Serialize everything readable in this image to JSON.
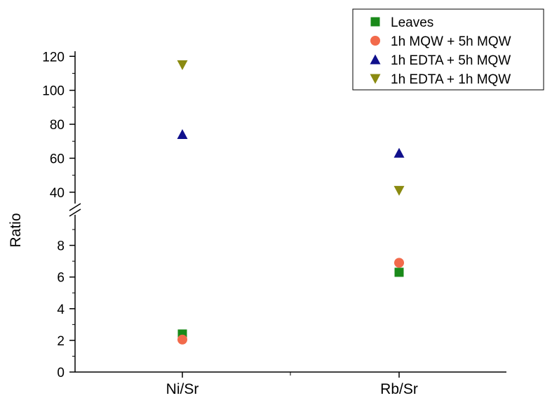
{
  "chart_data": {
    "type": "scatter",
    "ylabel": "Ratio",
    "categories": [
      "Ni/Sr",
      "Rb/Sr"
    ],
    "y_axis": {
      "broken": true,
      "lower_segment": {
        "range": [
          0,
          9
        ],
        "ticks": [
          "0",
          "2",
          "4",
          "6",
          "8"
        ]
      },
      "upper_segment": {
        "range": [
          30,
          123
        ],
        "ticks": [
          "40",
          "60",
          "80",
          "100",
          "120"
        ]
      }
    },
    "series": [
      {
        "name": "Leaves",
        "marker": "square",
        "color": "#1a8a1a",
        "values": [
          2.4,
          6.3
        ]
      },
      {
        "name": "1h MQW + 5h MQW",
        "marker": "circle",
        "color": "#f26a4b",
        "values": [
          2.05,
          6.9
        ]
      },
      {
        "name": "1h EDTA + 5h MQW",
        "marker": "triangle-up",
        "color": "#10108c",
        "values": [
          74,
          63
        ]
      },
      {
        "name": "1h EDTA + 1h MQW",
        "marker": "triangle-down",
        "color": "#8a8a10",
        "values": [
          115,
          41
        ]
      }
    ],
    "legend_position": "top-right",
    "grid": false
  }
}
